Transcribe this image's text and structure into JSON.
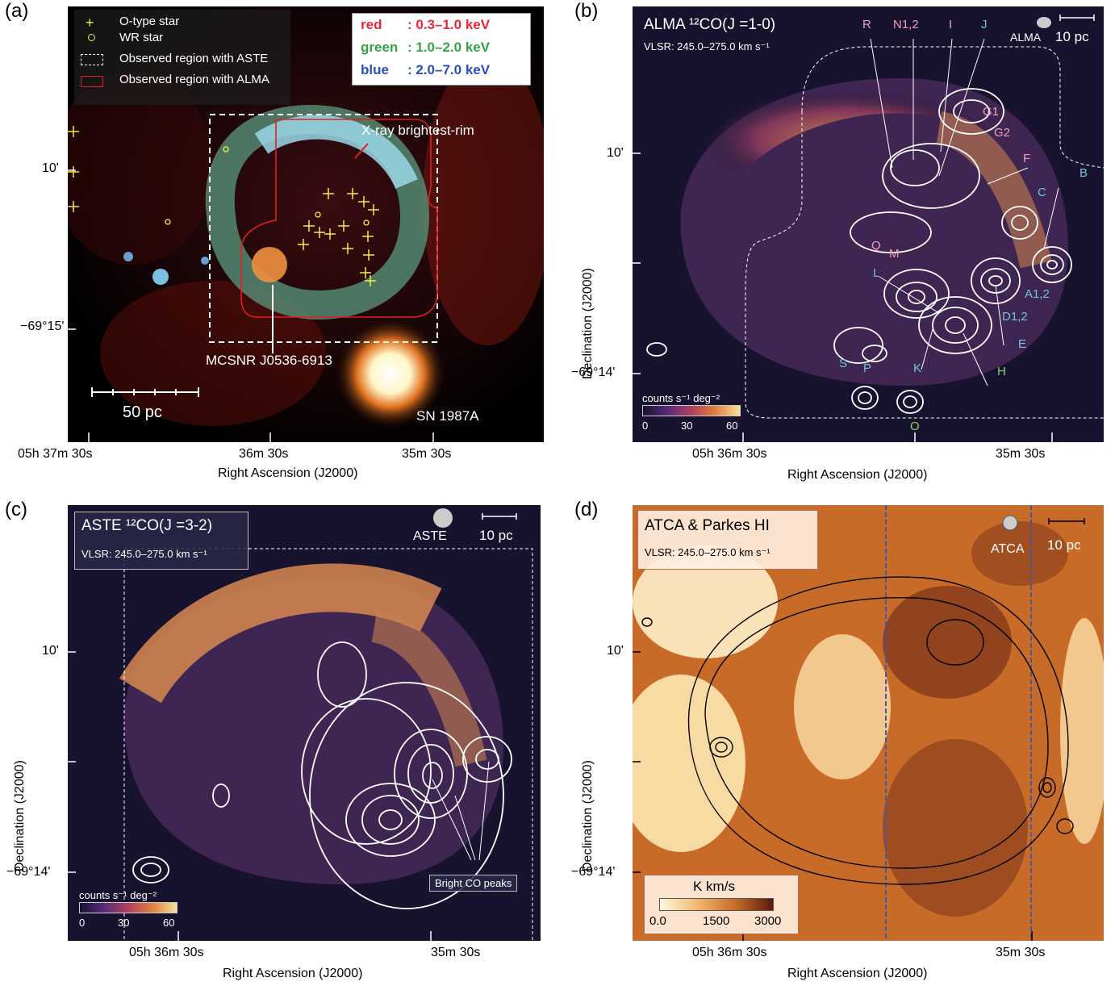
{
  "panels": {
    "a": {
      "letter": "(a)",
      "legend": {
        "otype": "O-type star",
        "wr": "WR star",
        "aste_region": "Observed region with ASTE",
        "alma_region": "Observed region with ALMA"
      },
      "energy": {
        "red": "red",
        "red_range": ": 0.3–1.0 keV",
        "green": "green",
        "green_range": ": 1.0–2.0 keV",
        "blue": "blue",
        "blue_range": ": 2.0–7.0 keV"
      },
      "annotations": {
        "rim": "X-ray brightest-rim",
        "snr": "MCSNR J0536-6913",
        "sn": "SN 1987A",
        "scale": "50 pc"
      },
      "xticks": [
        "05h 37m 30s",
        "36m 30s",
        "35m 30s"
      ],
      "yticks": [
        "10'",
        "−69°15'"
      ],
      "xlabel": "Right Ascension (J2000)"
    },
    "b": {
      "letter": "(b)",
      "title": "ALMA ¹²CO(J =1-0)",
      "vlsr": "VLSR: 245.0–275.0 km s⁻¹",
      "beam": "ALMA",
      "scale": "10 pc",
      "clouds_pink": [
        "R",
        "N1,2",
        "I",
        "G1",
        "G2",
        "F",
        "Q",
        "M"
      ],
      "clouds_cyan": [
        "J",
        "B",
        "C",
        "A1,2",
        "D1,2",
        "E",
        "L",
        "S",
        "P",
        "K"
      ],
      "clouds_green": [
        "H",
        "O"
      ],
      "colorbar": {
        "label": "counts s⁻¹ deg⁻²",
        "ticks": [
          "0",
          "30",
          "60"
        ]
      },
      "xticks": [
        "05h 36m 30s",
        "35m 30s"
      ],
      "yticks": [
        "10'",
        "−69°14'"
      ],
      "xlabel": "Right Ascension (J2000)",
      "ylabel": "Declination (J2000)"
    },
    "c": {
      "letter": "(c)",
      "title": "ASTE ¹²CO(J =3-2)",
      "vlsr": "VLSR: 245.0–275.0 km s⁻¹",
      "beam": "ASTE",
      "scale": "10 pc",
      "peaks": "Bright CO peaks",
      "colorbar": {
        "label": "counts s⁻¹ deg⁻²",
        "ticks": [
          "0",
          "30",
          "60"
        ]
      },
      "xticks": [
        "05h 36m 30s",
        "35m 30s"
      ],
      "yticks": [
        "10'",
        "−69°14'"
      ],
      "xlabel": "Right Ascension (J2000)",
      "ylabel": "Declination (J2000)"
    },
    "d": {
      "letter": "(d)",
      "title": "ATCA & Parkes HI",
      "vlsr": "VLSR: 245.0–275.0 km s⁻¹",
      "beam": "ATCA",
      "scale": "10 pc",
      "colorbar": {
        "label": "K km/s",
        "ticks": [
          "0.0",
          "1500",
          "3000"
        ]
      },
      "xticks": [
        "05h 36m 30s",
        "35m 30s"
      ],
      "yticks": [
        "10'",
        "−69°14'"
      ],
      "xlabel": "Right Ascension (J2000)",
      "ylabel": "Declination (J2000)"
    }
  },
  "colors": {
    "red": "#e8283a",
    "green": "#37a04a",
    "blue": "#2a4fb8",
    "pink_label": "#f0a0b8",
    "cyan_label": "#6cc8d8",
    "green_label": "#8ad060"
  }
}
